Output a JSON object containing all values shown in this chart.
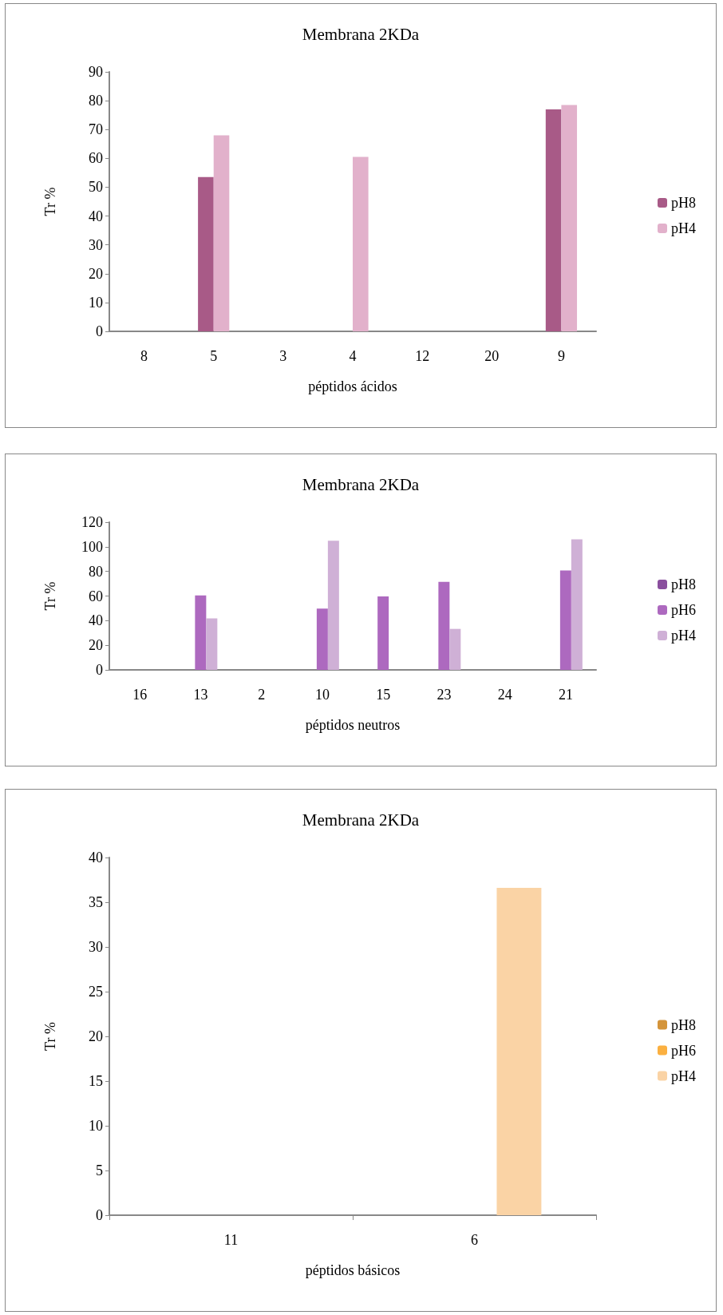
{
  "chart_data": [
    {
      "type": "bar",
      "title": "Membrana 2KDa",
      "xlabel": "péptidos ácidos",
      "ylabel": "Tr %",
      "categories": [
        "8",
        "5",
        "3",
        "4",
        "12",
        "20",
        "9"
      ],
      "series": [
        {
          "name": "pH8",
          "color": "#a85a87",
          "values": [
            0,
            53.5,
            0,
            0,
            0,
            0,
            77
          ]
        },
        {
          "name": "pH4",
          "color": "#e2b1cb",
          "values": [
            0,
            68,
            0,
            60.5,
            0,
            0,
            78.5
          ]
        }
      ],
      "ylim": [
        0,
        90
      ],
      "yticks": [
        0,
        10,
        20,
        30,
        40,
        50,
        60,
        70,
        80,
        90
      ],
      "grid": false,
      "legend": "right"
    },
    {
      "type": "bar",
      "title": "Membrana 2KDa",
      "xlabel": "péptidos neutros",
      "ylabel": "Tr %",
      "categories": [
        "16",
        "13",
        "2",
        "10",
        "15",
        "23",
        "24",
        "21"
      ],
      "series": [
        {
          "name": "pH8",
          "color": "#8a4f9e",
          "values": [
            0,
            0,
            0,
            0,
            0,
            0,
            0,
            0
          ]
        },
        {
          "name": "pH6",
          "color": "#ad69bf",
          "values": [
            0,
            60.5,
            0,
            49.8,
            59.6,
            71.5,
            0,
            80.7
          ]
        },
        {
          "name": "pH4",
          "color": "#cfb0d6",
          "values": [
            0,
            41.9,
            0,
            105,
            0,
            33.3,
            0,
            106
          ]
        }
      ],
      "ylim": [
        0,
        120
      ],
      "yticks": [
        0,
        20,
        40,
        60,
        80,
        100,
        120
      ],
      "grid": false,
      "legend": "right"
    },
    {
      "type": "bar",
      "title": "Membrana 2KDa",
      "xlabel": "péptidos básicos",
      "ylabel": "Tr %",
      "categories": [
        "11",
        "6"
      ],
      "series": [
        {
          "name": "pH8",
          "color": "#d4943a",
          "values": [
            0,
            0
          ]
        },
        {
          "name": "pH6",
          "color": "#fbb040",
          "values": [
            0,
            0
          ]
        },
        {
          "name": "pH4",
          "color": "#fad3a5",
          "values": [
            0,
            36.6
          ]
        }
      ],
      "ylim": [
        0,
        40
      ],
      "yticks": [
        0,
        5,
        10,
        15,
        20,
        25,
        30,
        35,
        40
      ],
      "grid": false,
      "legend": "right"
    }
  ]
}
